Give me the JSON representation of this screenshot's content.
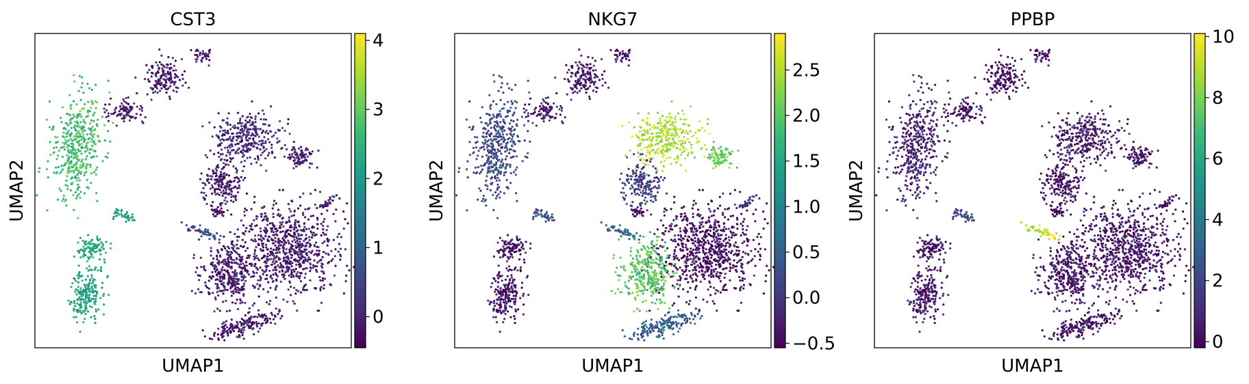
{
  "chart_data": [
    {
      "type": "scatter",
      "title": "CST3",
      "xlabel": "UMAP1",
      "ylabel": "UMAP2",
      "colorbar": {
        "colormap": "viridis",
        "range": [
          -0.45,
          4.1
        ],
        "ticks": [
          0,
          1,
          2,
          3,
          4
        ],
        "tick_labels": [
          "0",
          "1",
          "2",
          "3",
          "4"
        ]
      },
      "colors": {
        "points_low": "#440154",
        "points_high": "#fde725"
      },
      "clusters": [
        {
          "id": "left-large",
          "value": 2.7
        },
        {
          "id": "bottom-left-lower",
          "value": 2.2
        },
        {
          "id": "bottom-left-upper",
          "value": 2.3
        },
        {
          "id": "mid-left-small",
          "value": 2.1
        },
        {
          "id": "platelet-streak",
          "value": 0.7
        },
        {
          "id": "top-small-a",
          "value": -0.1
        },
        {
          "id": "top-small-b",
          "value": -0.1
        },
        {
          "id": "top-small-c",
          "value": -0.1
        },
        {
          "id": "upper-right-top",
          "value": 0.1
        },
        {
          "id": "upper-right-side",
          "value": 0.0
        },
        {
          "id": "center-mid",
          "value": -0.1
        },
        {
          "id": "right-small",
          "value": 0.0
        },
        {
          "id": "right-large",
          "value": -0.1
        },
        {
          "id": "center-lower",
          "value": -0.1
        },
        {
          "id": "bottom-tail",
          "value": -0.1
        },
        {
          "id": "small-left-mid",
          "value": -0.1
        }
      ]
    },
    {
      "type": "scatter",
      "title": "NKG7",
      "xlabel": "UMAP1",
      "ylabel": "UMAP2",
      "colorbar": {
        "colormap": "viridis",
        "range": [
          -0.55,
          2.9
        ],
        "ticks": [
          -0.5,
          0.0,
          0.5,
          1.0,
          1.5,
          2.0,
          2.5
        ],
        "tick_labels": [
          "−0.5",
          "0.0",
          "0.5",
          "1.0",
          "1.5",
          "2.0",
          "2.5"
        ]
      },
      "colors": {
        "points_low": "#440154",
        "points_high": "#fde725"
      },
      "clusters": [
        {
          "id": "left-large",
          "value": 0.2
        },
        {
          "id": "bottom-left-lower",
          "value": -0.35
        },
        {
          "id": "bottom-left-upper",
          "value": -0.35
        },
        {
          "id": "mid-left-small",
          "value": 0.3
        },
        {
          "id": "platelet-streak",
          "value": 0.6
        },
        {
          "id": "top-small-a",
          "value": -0.3
        },
        {
          "id": "top-small-b",
          "value": -0.3
        },
        {
          "id": "top-small-c",
          "value": -0.4
        },
        {
          "id": "upper-right-top",
          "value": 2.5
        },
        {
          "id": "upper-right-side",
          "value": 2.1
        },
        {
          "id": "center-mid",
          "value": 0.1
        },
        {
          "id": "right-small",
          "value": 0.0
        },
        {
          "id": "right-large",
          "value": -0.45
        },
        {
          "id": "center-lower",
          "value": 2.0
        },
        {
          "id": "bottom-tail",
          "value": 0.5
        },
        {
          "id": "small-left-mid",
          "value": -0.3
        }
      ]
    },
    {
      "type": "scatter",
      "title": "PPBP",
      "xlabel": "UMAP1",
      "ylabel": "UMAP2",
      "colorbar": {
        "colormap": "viridis",
        "range": [
          -0.2,
          10.1
        ],
        "ticks": [
          0,
          2,
          4,
          6,
          8,
          10
        ],
        "tick_labels": [
          "0",
          "2",
          "4",
          "6",
          "8",
          "10"
        ]
      },
      "colors": {
        "points_low": "#440154",
        "points_high": "#fde725"
      },
      "clusters": [
        {
          "id": "left-large",
          "value": 0.8
        },
        {
          "id": "bottom-left-lower",
          "value": 0.5
        },
        {
          "id": "bottom-left-upper",
          "value": 0.4
        },
        {
          "id": "mid-left-small",
          "value": 2.0
        },
        {
          "id": "platelet-streak",
          "value": 9.3
        },
        {
          "id": "top-small-a",
          "value": 0.2
        },
        {
          "id": "top-small-b",
          "value": 0.2
        },
        {
          "id": "top-small-c",
          "value": 0.2
        },
        {
          "id": "upper-right-top",
          "value": 0.5
        },
        {
          "id": "upper-right-side",
          "value": 0.4
        },
        {
          "id": "center-mid",
          "value": 0.3
        },
        {
          "id": "right-small",
          "value": 0.4
        },
        {
          "id": "right-large",
          "value": 0.3
        },
        {
          "id": "center-lower",
          "value": 0.4
        },
        {
          "id": "bottom-tail",
          "value": 0.3
        },
        {
          "id": "small-left-mid",
          "value": 0.3
        }
      ]
    }
  ]
}
